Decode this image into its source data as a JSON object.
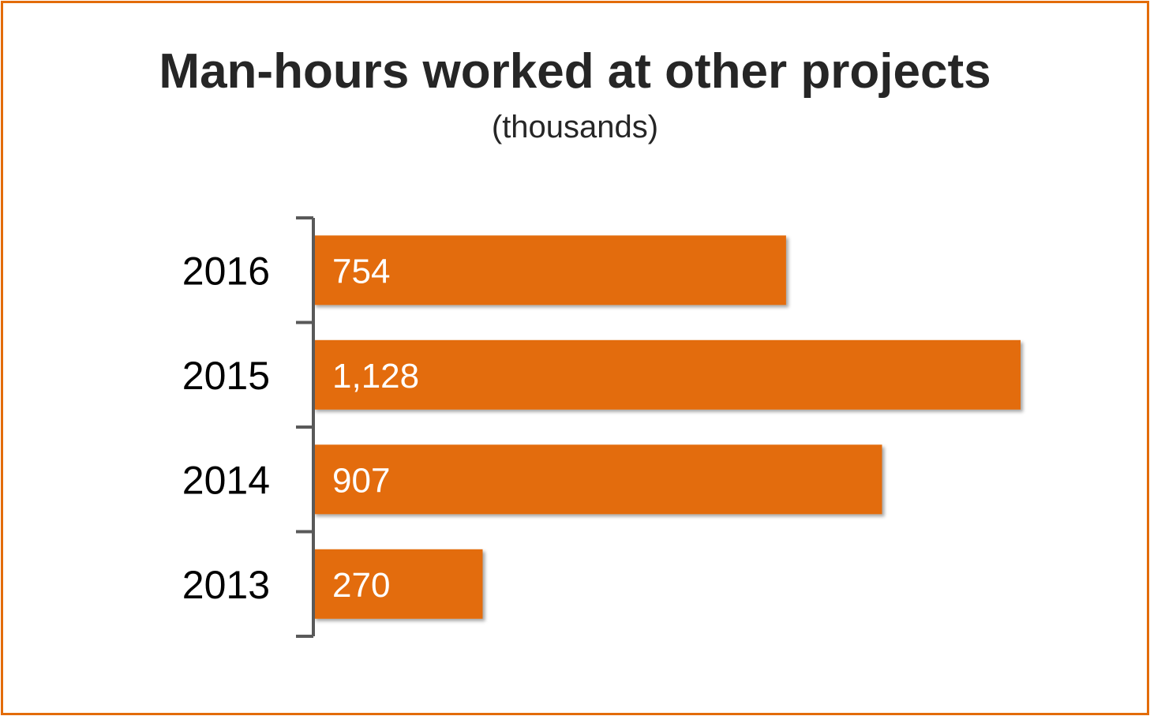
{
  "chart_data": {
    "type": "bar",
    "orientation": "horizontal",
    "title": "Man-hours worked at other projects",
    "subtitle": "(thousands)",
    "categories": [
      "2016",
      "2015",
      "2014",
      "2013"
    ],
    "values": [
      754,
      1128,
      907,
      270
    ],
    "value_labels": [
      "754",
      "1,128",
      "907",
      "270"
    ],
    "xlim": [
      0,
      1128
    ],
    "grid": false,
    "legend": "none",
    "colors": {
      "bar": "#e36c0a",
      "frame": "#e36c0a",
      "axis": "#595959",
      "title": "#262626"
    }
  }
}
